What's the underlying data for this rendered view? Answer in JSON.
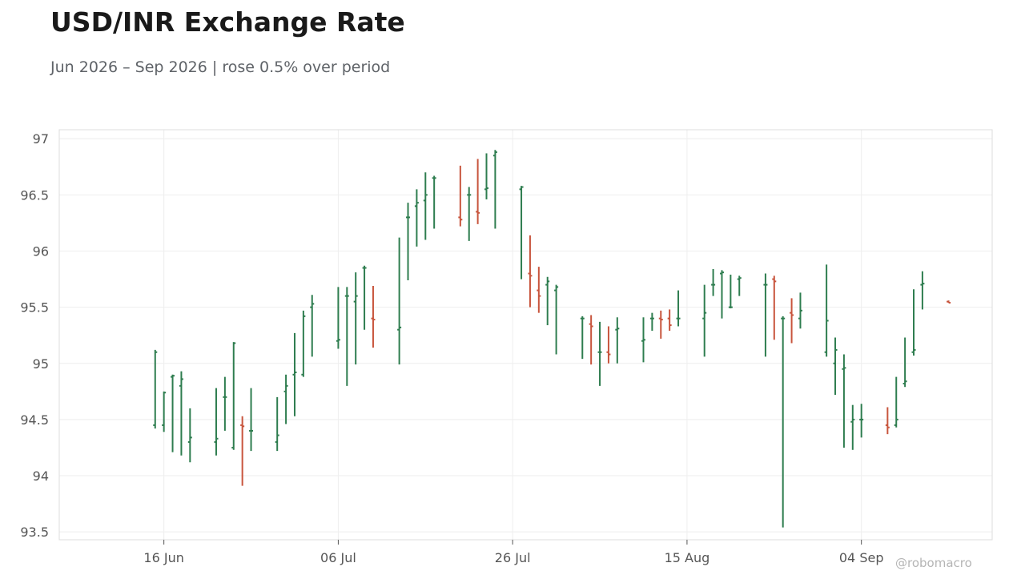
{
  "header": {
    "title": "USD/INR Exchange Rate",
    "subtitle": "Jun 2026 – Sep 2026 | rose 0.5% over period"
  },
  "watermark": "@robomacro",
  "colors": {
    "up": "#2e7d4f",
    "down": "#c8553d",
    "grid": "#eeeeee",
    "frame": "#dddddd"
  },
  "chart_data": {
    "type": "ohlc",
    "title": "USD/INR Exchange Rate",
    "subtitle": "Jun 2026 – Sep 2026 | rose 0.5% over period",
    "xlabel": "",
    "ylabel": "",
    "ylim": [
      93.43,
      97.08
    ],
    "yticks": [
      93.5,
      94,
      94.5,
      95,
      95.5,
      96,
      96.5,
      97
    ],
    "ytick_labels": [
      "93.5",
      "94",
      "94.5",
      "95",
      "95.5",
      "96",
      "96.5",
      "97"
    ],
    "xlim": [
      "2026-06-04",
      "2026-09-19"
    ],
    "xticks": [
      "2026-06-16",
      "2026-07-06",
      "2026-07-26",
      "2026-08-15",
      "2026-09-04"
    ],
    "xtick_labels": [
      "16 Jun",
      "06 Jul",
      "26 Jul",
      "15 Aug",
      "04 Sep"
    ],
    "grid": true,
    "legend": "none",
    "series": [
      {
        "date": [
          "2026-06-15",
          "2026-06-16",
          "2026-06-17",
          "2026-06-18",
          "2026-06-19",
          "2026-06-22",
          "2026-06-23",
          "2026-06-24",
          "2026-06-25",
          "2026-06-26",
          "2026-06-29",
          "2026-06-30",
          "2026-07-01",
          "2026-07-02",
          "2026-07-03",
          "2026-07-06",
          "2026-07-07",
          "2026-07-08",
          "2026-07-09",
          "2026-07-10",
          "2026-07-13",
          "2026-07-14",
          "2026-07-15",
          "2026-07-16",
          "2026-07-17",
          "2026-07-20",
          "2026-07-21",
          "2026-07-22",
          "2026-07-23",
          "2026-07-24",
          "2026-07-27",
          "2026-07-28",
          "2026-07-29",
          "2026-07-30",
          "2026-07-31",
          "2026-08-03",
          "2026-08-04",
          "2026-08-05",
          "2026-08-06",
          "2026-08-07",
          "2026-08-10",
          "2026-08-11",
          "2026-08-12",
          "2026-08-13",
          "2026-08-14",
          "2026-08-17",
          "2026-08-18",
          "2026-08-19",
          "2026-08-20",
          "2026-08-21",
          "2026-08-24",
          "2026-08-25",
          "2026-08-26",
          "2026-08-27",
          "2026-08-28",
          "2026-08-31",
          "2026-09-01",
          "2026-09-02",
          "2026-09-03",
          "2026-09-04",
          "2026-09-07",
          "2026-09-08",
          "2026-09-09",
          "2026-09-10",
          "2026-09-11",
          "2026-09-14"
        ],
        "open": [
          94.45,
          94.45,
          94.88,
          94.8,
          94.3,
          94.3,
          94.7,
          94.25,
          94.45,
          94.4,
          94.3,
          94.75,
          94.9,
          94.9,
          95.5,
          95.2,
          95.6,
          95.55,
          95.85,
          95.4,
          95.3,
          96.3,
          96.4,
          96.45,
          96.65,
          96.3,
          96.5,
          96.35,
          96.55,
          96.85,
          96.55,
          95.8,
          95.65,
          95.7,
          95.65,
          95.4,
          95.35,
          95.1,
          95.1,
          95.3,
          95.2,
          95.4,
          95.4,
          95.4,
          95.4,
          95.4,
          95.7,
          95.8,
          95.5,
          95.75,
          95.7,
          95.75,
          95.4,
          95.45,
          95.4,
          95.1,
          95.0,
          94.95,
          94.48,
          94.5,
          94.45,
          94.45,
          94.82,
          95.1,
          95.7,
          95.55
        ],
        "high": [
          95.12,
          94.75,
          94.9,
          94.93,
          94.6,
          94.78,
          94.88,
          95.19,
          94.53,
          94.78,
          94.7,
          94.9,
          95.27,
          95.47,
          95.61,
          95.68,
          95.68,
          95.81,
          95.87,
          95.69,
          96.12,
          96.43,
          96.55,
          96.7,
          96.67,
          96.76,
          96.57,
          96.82,
          96.87,
          96.9,
          96.58,
          96.14,
          95.86,
          95.77,
          95.7,
          95.42,
          95.43,
          95.37,
          95.33,
          95.41,
          95.41,
          95.45,
          95.47,
          95.48,
          95.65,
          95.7,
          95.84,
          95.83,
          95.79,
          95.78,
          95.8,
          95.78,
          95.42,
          95.58,
          95.63,
          95.88,
          95.23,
          95.08,
          94.63,
          94.64,
          94.61,
          94.88,
          95.23,
          95.66,
          95.82,
          95.56
        ],
        "low": [
          94.42,
          94.39,
          94.21,
          94.18,
          94.12,
          94.18,
          94.4,
          94.23,
          93.91,
          94.22,
          94.22,
          94.46,
          94.53,
          94.88,
          95.06,
          95.13,
          94.8,
          94.99,
          95.3,
          95.14,
          94.99,
          95.74,
          96.04,
          96.1,
          96.2,
          96.22,
          96.09,
          96.24,
          96.46,
          96.2,
          95.75,
          95.5,
          95.45,
          95.34,
          95.08,
          95.04,
          94.99,
          94.8,
          95.0,
          95.0,
          95.01,
          95.29,
          95.22,
          95.29,
          95.33,
          95.06,
          95.6,
          95.4,
          95.49,
          95.6,
          95.06,
          95.21,
          93.54,
          95.18,
          95.31,
          95.06,
          94.72,
          94.25,
          94.23,
          94.34,
          94.37,
          94.43,
          94.79,
          95.07,
          95.48,
          95.54
        ],
        "close": [
          95.1,
          94.74,
          94.89,
          94.86,
          94.34,
          94.33,
          94.7,
          95.18,
          94.44,
          94.4,
          94.36,
          94.8,
          94.92,
          95.42,
          95.53,
          95.21,
          95.6,
          95.6,
          95.85,
          95.39,
          95.32,
          96.3,
          96.43,
          96.5,
          96.65,
          96.28,
          96.5,
          96.34,
          96.56,
          96.88,
          96.57,
          95.78,
          95.6,
          95.73,
          95.68,
          95.4,
          95.33,
          95.1,
          95.08,
          95.31,
          95.21,
          95.4,
          95.39,
          95.34,
          95.4,
          95.45,
          95.7,
          95.81,
          95.5,
          95.76,
          95.7,
          95.73,
          95.4,
          95.43,
          95.47,
          95.38,
          95.12,
          94.96,
          94.5,
          94.5,
          94.43,
          94.5,
          94.84,
          95.12,
          95.71,
          95.54
        ]
      }
    ]
  }
}
